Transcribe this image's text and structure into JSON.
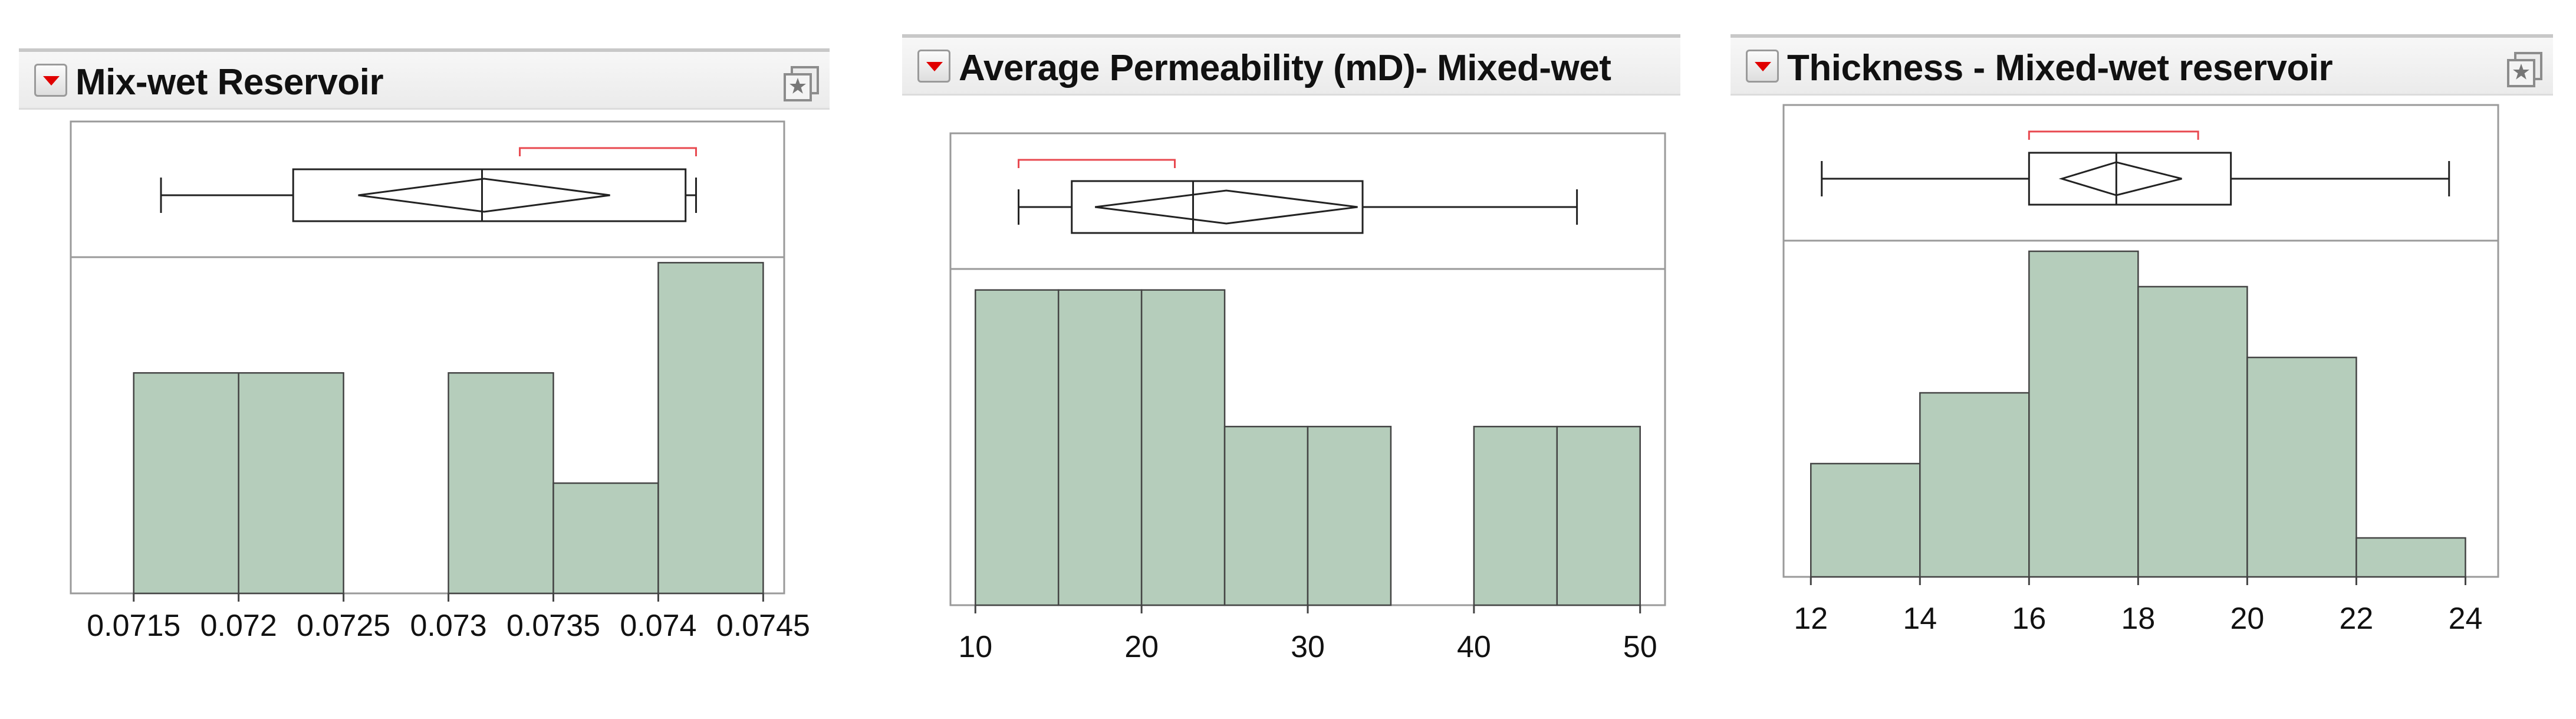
{
  "colors": {
    "bar_fill": "#b5cdbb",
    "bar_stroke": "#444444",
    "ci_bar": "#e8484f",
    "frame": "#9a9a9a",
    "menu_triangle": "#e00000"
  },
  "icons": {
    "menu": "red-triangle-menu-icon",
    "options": "star-options-icon"
  },
  "chart_data": [
    {
      "type": "histogram",
      "title": "Mix-wet Reservoir",
      "xlim": [
        0.0712,
        0.0746
      ],
      "x_ticks": [
        0.0715,
        0.072,
        0.0725,
        0.073,
        0.0735,
        0.074,
        0.0745
      ],
      "x_tick_labels": [
        "0.0715",
        "0.072",
        "0.0725",
        "0.073",
        "0.0735",
        "0.074",
        "0.0745"
      ],
      "bins": [
        {
          "from": 0.0715,
          "to": 0.072,
          "count": 2
        },
        {
          "from": 0.072,
          "to": 0.0725,
          "count": 2
        },
        {
          "from": 0.0725,
          "to": 0.073,
          "count": 0
        },
        {
          "from": 0.073,
          "to": 0.0735,
          "count": 2
        },
        {
          "from": 0.0735,
          "to": 0.074,
          "count": 1
        },
        {
          "from": 0.074,
          "to": 0.0745,
          "count": 3
        }
      ],
      "ylim": [
        0,
        3.05
      ],
      "box_plot": {
        "whisker_low": 0.07163,
        "q1": 0.07226,
        "median": 0.07316,
        "q3": 0.07413,
        "whisker_high": 0.07418,
        "mean_diamond": {
          "low": 0.07257,
          "mean": 0.07317,
          "high": 0.07377
        },
        "shortest_half": [
          0.07334,
          0.07418
        ]
      },
      "grid": false
    },
    {
      "type": "histogram",
      "title": "Average Permeability (mD)- Mixed-wet",
      "xlim": [
        8.5,
        51.5
      ],
      "x_ticks": [
        10,
        20,
        30,
        40,
        50
      ],
      "x_tick_labels": [
        "10",
        "20",
        "30",
        "40",
        "50"
      ],
      "bins": [
        {
          "from": 10,
          "to": 15,
          "count": 3
        },
        {
          "from": 15,
          "to": 20,
          "count": 3
        },
        {
          "from": 20,
          "to": 25,
          "count": 3
        },
        {
          "from": 25,
          "to": 30,
          "count": 1.7
        },
        {
          "from": 30,
          "to": 35,
          "count": 1.7
        },
        {
          "from": 35,
          "to": 40,
          "count": 0
        },
        {
          "from": 40,
          "to": 45,
          "count": 1.7
        },
        {
          "from": 45,
          "to": 50,
          "count": 1.7
        }
      ],
      "ylim": [
        0,
        3.2
      ],
      "box_plot": {
        "whisker_low": 12.6,
        "q1": 15.8,
        "median": 23.1,
        "q3": 33.3,
        "whisker_high": 46.2,
        "mean_diamond": {
          "low": 17.2,
          "mean": 25.1,
          "high": 33.0
        },
        "shortest_half": [
          12.6,
          22.0
        ]
      },
      "grid": false
    },
    {
      "type": "histogram",
      "title": "Thickness - Mixed-wet reservoir",
      "xlim": [
        11.5,
        24.6
      ],
      "x_ticks": [
        12,
        14,
        16,
        18,
        20,
        22,
        24
      ],
      "x_tick_labels": [
        "12",
        "14",
        "16",
        "18",
        "20",
        "22",
        "24"
      ],
      "bins": [
        {
          "from": 12,
          "to": 14,
          "count": 1.6
        },
        {
          "from": 14,
          "to": 16,
          "count": 2.6
        },
        {
          "from": 16,
          "to": 18,
          "count": 4.6
        },
        {
          "from": 18,
          "to": 20,
          "count": 4.1
        },
        {
          "from": 20,
          "to": 22,
          "count": 3.1
        },
        {
          "from": 22,
          "to": 24,
          "count": 0.55
        }
      ],
      "ylim": [
        0,
        4.75
      ],
      "box_plot": {
        "whisker_low": 12.2,
        "q1": 16.0,
        "median": 17.6,
        "q3": 19.7,
        "whisker_high": 23.7,
        "mean_diamond": {
          "low": 16.6,
          "mean": 17.6,
          "high": 18.8
        },
        "shortest_half": [
          16.0,
          19.1
        ]
      },
      "grid": false
    }
  ]
}
